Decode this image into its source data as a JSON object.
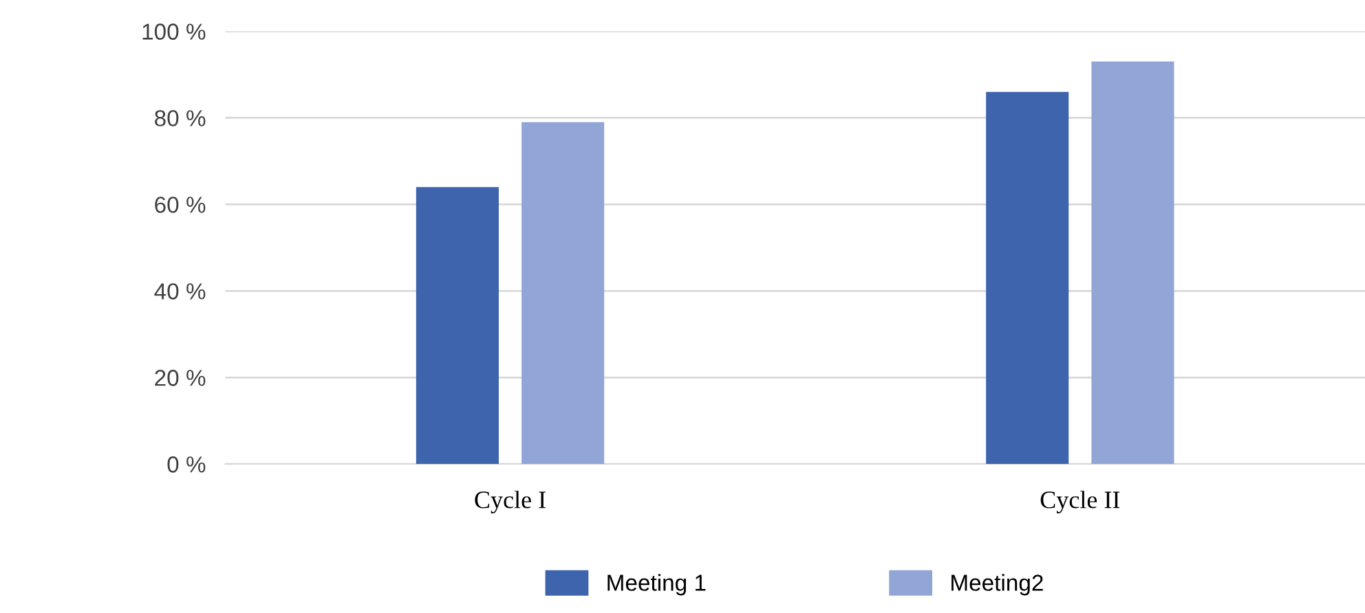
{
  "chart_data": {
    "type": "bar",
    "categories": [
      "Cycle I",
      "Cycle II"
    ],
    "series": [
      {
        "name": "Meeting 1",
        "color": "#3d64ad",
        "values": [
          64,
          86
        ]
      },
      {
        "name": "Meeting2",
        "color": "#91a6d6",
        "values": [
          79,
          93
        ]
      }
    ],
    "ylim": [
      0,
      100
    ],
    "yticks": [
      {
        "value": 0,
        "label": "0 %"
      },
      {
        "value": 20,
        "label": "20 %"
      },
      {
        "value": 40,
        "label": "40 %"
      },
      {
        "value": 60,
        "label": "60 %"
      },
      {
        "value": 80,
        "label": "80 %"
      },
      {
        "value": 100,
        "label": "100 %"
      }
    ],
    "grid": "y",
    "legend": "bottom"
  }
}
